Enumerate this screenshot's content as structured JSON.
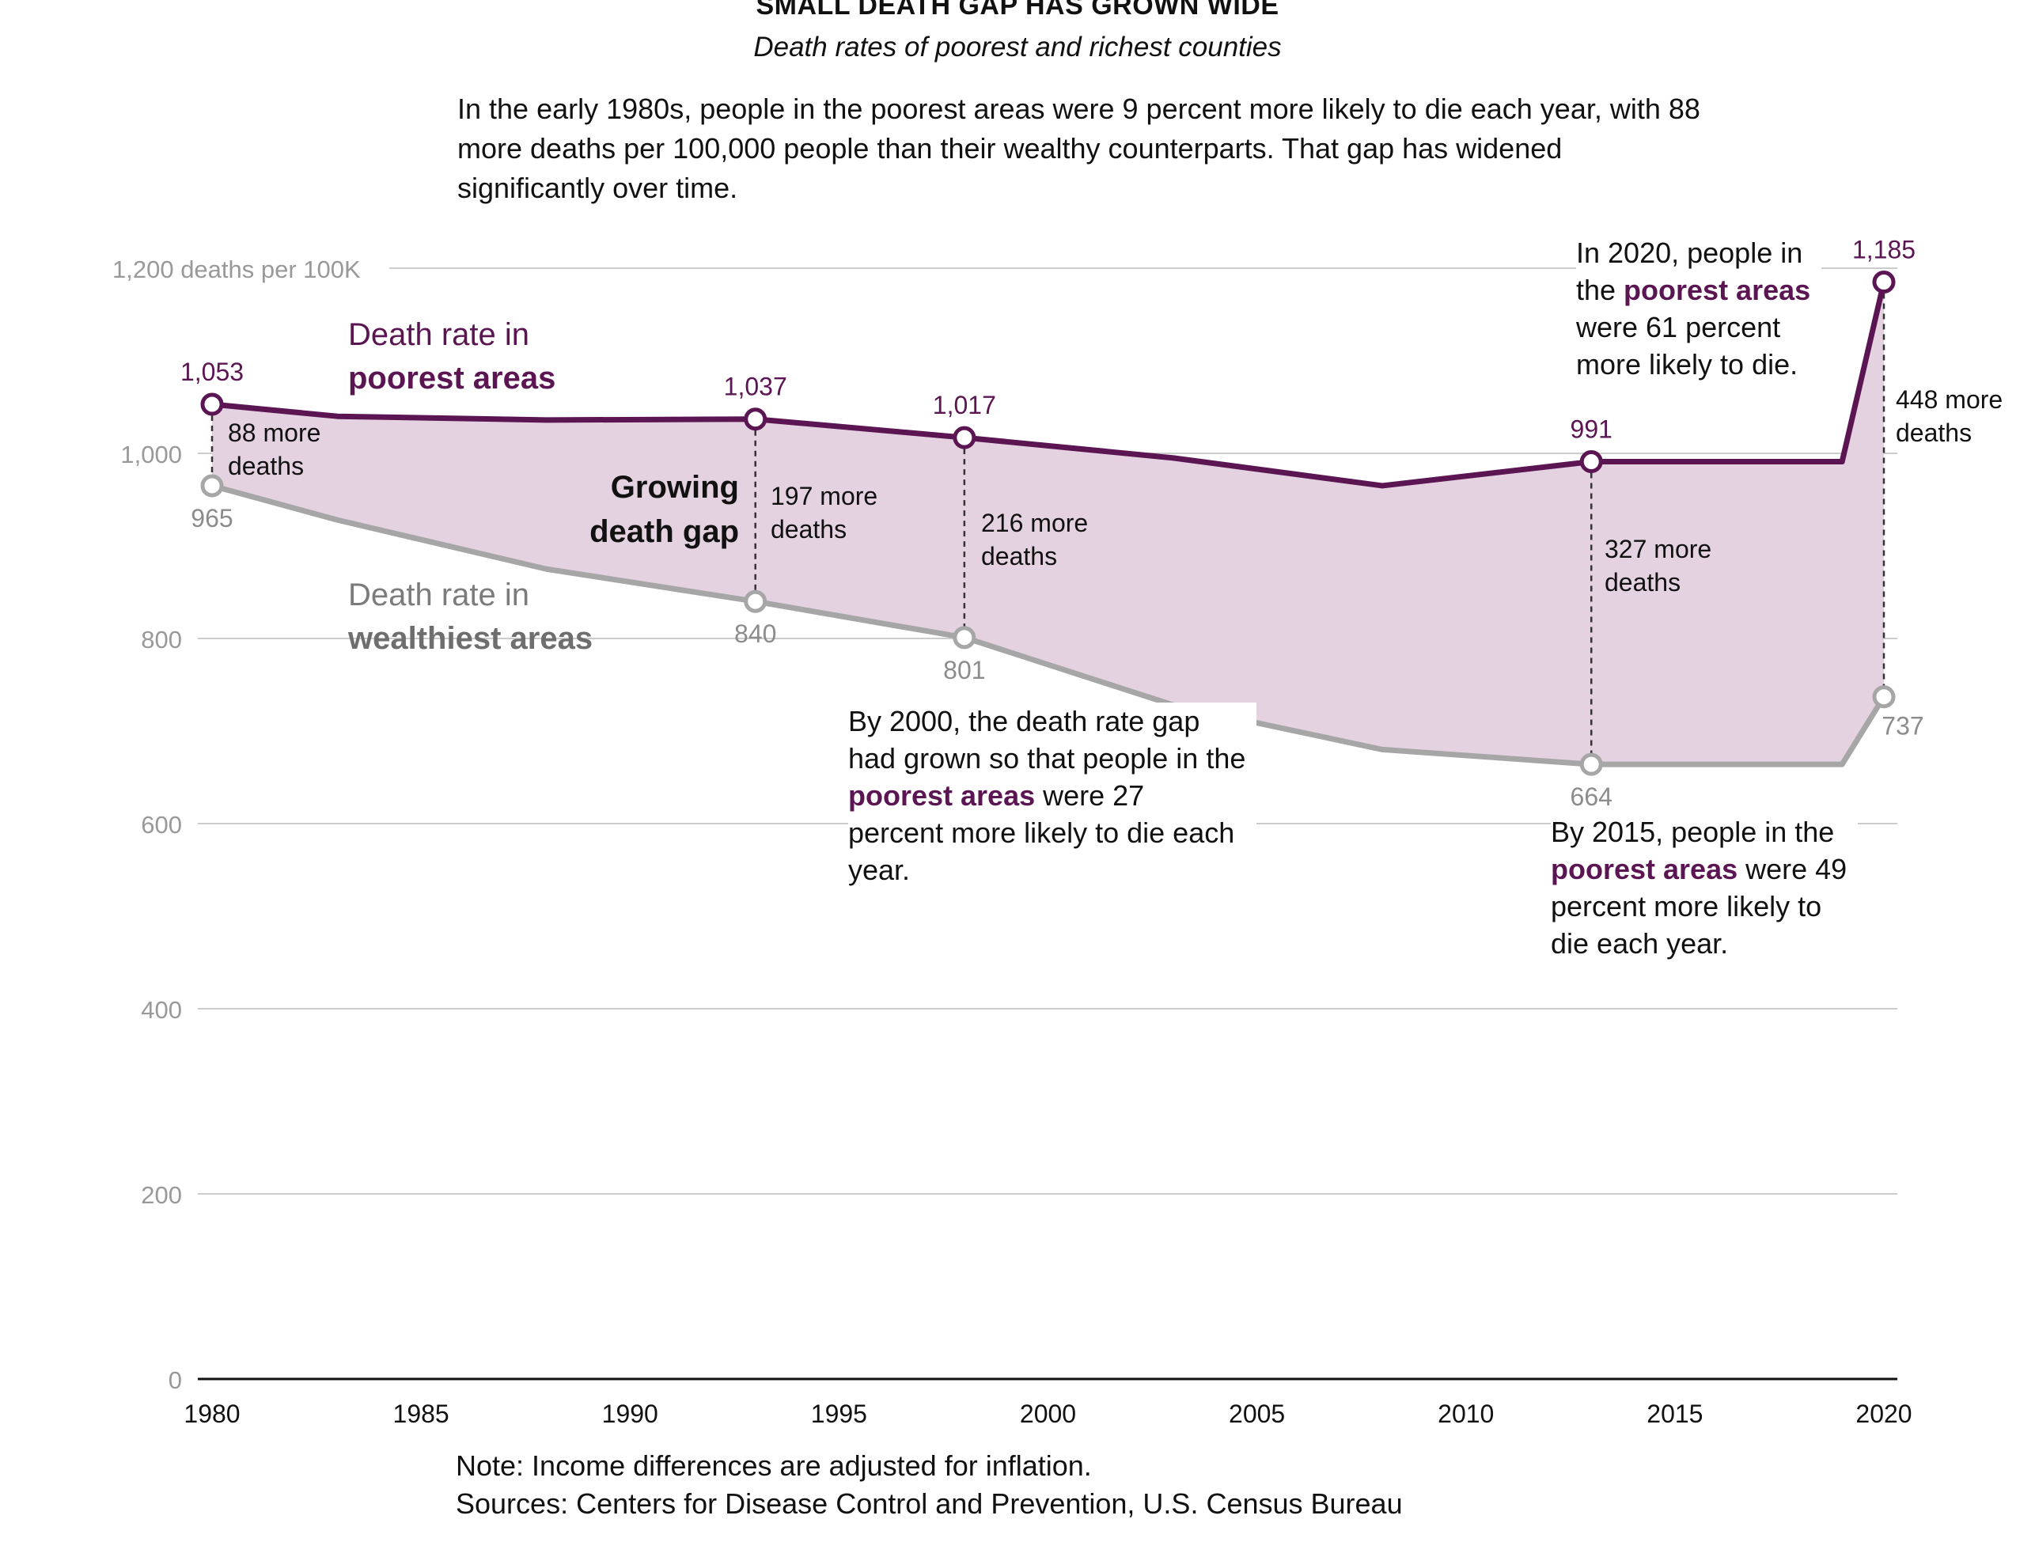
{
  "title": "SMALL DEATH GAP HAS GROWN WIDE",
  "subtitle": "Death rates of poorest and richest counties",
  "intro": "In the early 1980s, people in the poorest areas were 9 percent more likely to die each year, with 88 more deaths per 100,000 people than their wealthy counterparts. That gap has widened significantly over time.",
  "note": "Note: Income differences are adjusted for inflation.",
  "sources": "Sources: Centers for Disease Control and Prevention, U.S. Census Bureau",
  "colors": {
    "poorest": "#5b1553",
    "wealthiest": "#a6a6a6",
    "gap_fill": "#e4d2e1",
    "grid": "#cccccc",
    "tick_text": "#999999"
  },
  "labels": {
    "poorest_line1": "Death rate in",
    "poorest_line2": "poorest areas",
    "wealthiest_line1": "Death rate in",
    "wealthiest_line2": "wealthiest areas",
    "growing_line1": "Growing",
    "growing_line2": "death gap"
  },
  "annotations": {
    "a2000_line1": "By 2000, the death rate gap",
    "a2000_line2": "had grown so that people in the",
    "a2000_bold": "poorest areas",
    "a2000_line3_rest": " were 27",
    "a2000_line4": "percent more likely to die each",
    "a2000_line5": "year.",
    "a2015_line1": "By 2015, people in the",
    "a2015_bold": "poorest areas",
    "a2015_line2_rest": " were 49",
    "a2015_line3": "percent more likely to",
    "a2015_line4": "die each year.",
    "a2020_line1": "In 2020, people in",
    "a2020_pre": "the ",
    "a2020_bold": "poorest areas",
    "a2020_line3": "were 61 percent",
    "a2020_line4": "more likely to die."
  },
  "gaps": [
    {
      "line1": "88 more",
      "line2": "deaths"
    },
    {
      "line1": "197 more",
      "line2": "deaths"
    },
    {
      "line1": "216 more",
      "line2": "deaths"
    },
    {
      "line1": "327 more",
      "line2": "deaths"
    },
    {
      "line1": "448 more",
      "line2": "deaths"
    }
  ],
  "chart_data": {
    "type": "line",
    "title": "SMALL DEATH GAP HAS GROWN WIDE",
    "subtitle": "Death rates of poorest and richest counties",
    "ylim": [
      0,
      1200
    ],
    "xlim": [
      1980,
      2020
    ],
    "y_ticks": [
      0,
      200,
      400,
      600,
      800,
      1000,
      1200
    ],
    "y_tick_labels": [
      "0",
      "200",
      "400",
      "600",
      "800",
      "1,000",
      "1,200 deaths per 100K"
    ],
    "x_ticks": [
      1980,
      1985,
      1990,
      1995,
      2000,
      2005,
      2010,
      2015,
      2020
    ],
    "x_tick_labels": [
      "1980",
      "1985",
      "1990",
      "1995",
      "2000",
      "2005",
      "2010",
      "2015",
      "2020"
    ],
    "grid": true,
    "series": [
      {
        "name": "Death rate in poorest areas",
        "x": [
          1980,
          1983,
          1988,
          1993,
          1998,
          2003,
          2008,
          2013,
          2019,
          2020
        ],
        "values": [
          1053,
          1040,
          1036,
          1037,
          1017,
          995,
          965,
          991,
          991,
          1185
        ],
        "labeled_points": [
          {
            "x": 1980,
            "y": 1053,
            "label": "1,053"
          },
          {
            "x": 1993,
            "y": 1037,
            "label": "1,037"
          },
          {
            "x": 1998,
            "y": 1017,
            "label": "1,017"
          },
          {
            "x": 2013,
            "y": 991,
            "label": "991"
          },
          {
            "x": 2020,
            "y": 1185,
            "label": "1,185"
          }
        ]
      },
      {
        "name": "Death rate in wealthiest areas",
        "x": [
          1980,
          1983,
          1988,
          1993,
          1998,
          2003,
          2008,
          2013,
          2019,
          2020
        ],
        "values": [
          965,
          928,
          875,
          840,
          801,
          728,
          680,
          664,
          664,
          737
        ],
        "labeled_points": [
          {
            "x": 1980,
            "y": 965,
            "label": "965"
          },
          {
            "x": 1993,
            "y": 840,
            "label": "840"
          },
          {
            "x": 1998,
            "y": 801,
            "label": "801"
          },
          {
            "x": 2013,
            "y": 664,
            "label": "664"
          },
          {
            "x": 2020,
            "y": 737,
            "label": "737"
          }
        ]
      }
    ]
  }
}
